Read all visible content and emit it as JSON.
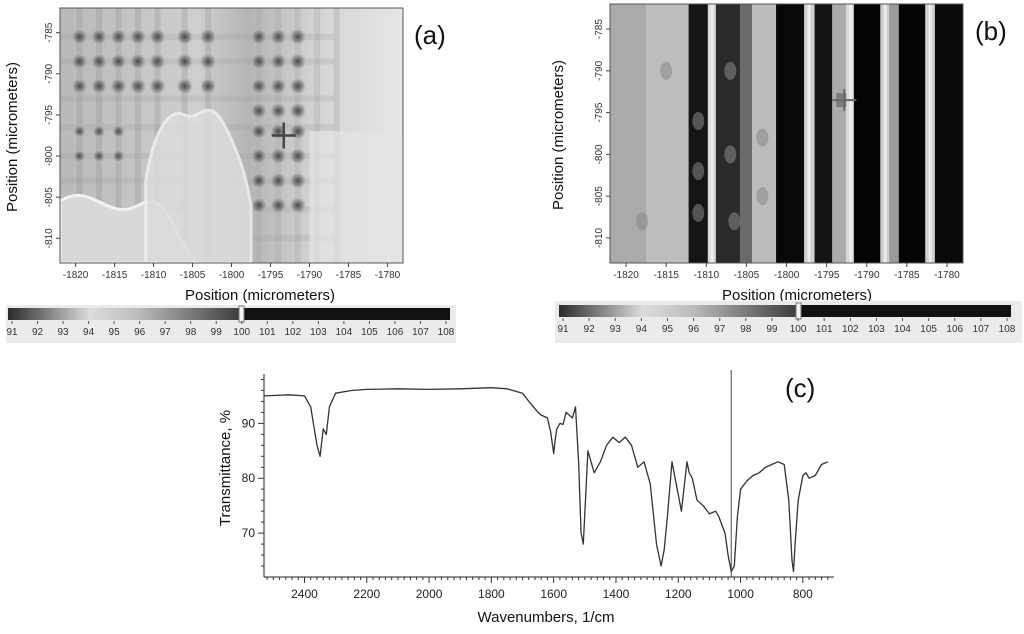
{
  "chart_data": [
    {
      "type": "heatmap",
      "panel_label": "(a)",
      "xlabel": "Position (micrometers)",
      "ylabel": "Position (micrometers)",
      "x_ticks": [
        "-1820",
        "-1815",
        "-1810",
        "-1805",
        "-1800",
        "-1795",
        "-1790",
        "-1785",
        "-1780"
      ],
      "y_ticks": [
        "-785",
        "-790",
        "-795",
        "-800",
        "-805",
        "-810"
      ],
      "xlim": [
        -1822,
        -1778
      ],
      "ylim": [
        -782,
        -813
      ],
      "colorbar": {
        "ticks": [
          "91",
          "92",
          "93",
          "94",
          "95",
          "96",
          "97",
          "98",
          "99",
          "100",
          "101",
          "102",
          "103",
          "104",
          "105",
          "106",
          "107",
          "108"
        ],
        "range": [
          91,
          108
        ],
        "gradient_end": 100
      },
      "crosshair": {
        "x": -1793.3,
        "y": -797.5
      }
    },
    {
      "type": "heatmap",
      "panel_label": "(b)",
      "xlabel": "Position (micrometers)",
      "ylabel": "Position (micrometers)",
      "x_ticks": [
        "-1820",
        "-1815",
        "-1810",
        "-1805",
        "-1800",
        "-1795",
        "-1790",
        "-1785",
        "-1780"
      ],
      "y_ticks": [
        "-785",
        "-790",
        "-795",
        "-800",
        "-805",
        "-810"
      ],
      "xlim": [
        -1822,
        -1778
      ],
      "ylim": [
        -782,
        -813
      ],
      "colorbar": {
        "ticks": [
          "91",
          "92",
          "93",
          "94",
          "95",
          "96",
          "97",
          "98",
          "99",
          "100",
          "101",
          "102",
          "103",
          "104",
          "105",
          "106",
          "107",
          "108"
        ],
        "range": [
          91,
          108
        ],
        "gradient_end": 100
      },
      "crosshair": {
        "x": -1792.8,
        "y": -793.5
      }
    },
    {
      "type": "line",
      "panel_label": "(c)",
      "xlabel": "Wavenumbers, 1/cm",
      "ylabel": "Transmittance, %",
      "x_ticks": [
        "2400",
        "2200",
        "2000",
        "1800",
        "1600",
        "1400",
        "1200",
        "1000",
        "800"
      ],
      "y_ticks": [
        "70",
        "80",
        "90"
      ],
      "xlim": [
        2530,
        700
      ],
      "ylim": [
        62,
        99
      ],
      "marker_line_x": 1030,
      "series": [
        {
          "x": [
            2530,
            2450,
            2400,
            2380,
            2360,
            2350,
            2340,
            2330,
            2320,
            2300,
            2250,
            2200,
            2100,
            2000,
            1900,
            1800,
            1750,
            1700,
            1680,
            1650,
            1640,
            1620,
            1610,
            1600,
            1595,
            1590,
            1580,
            1570,
            1560,
            1540,
            1530,
            1520,
            1512,
            1505,
            1490,
            1470,
            1450,
            1430,
            1410,
            1390,
            1370,
            1350,
            1330,
            1310,
            1290,
            1270,
            1255,
            1245,
            1235,
            1220,
            1210,
            1200,
            1190,
            1180,
            1172,
            1165,
            1155,
            1140,
            1120,
            1100,
            1080,
            1070,
            1050,
            1040,
            1030,
            1020,
            1010,
            1000,
            980,
            960,
            940,
            920,
            900,
            880,
            860,
            845,
            835,
            830,
            825,
            815,
            800,
            790,
            780,
            760,
            740,
            720
          ],
          "y": [
            95,
            95.2,
            95,
            93,
            86,
            84,
            89,
            88,
            93,
            95.5,
            96,
            96.2,
            96.3,
            96.2,
            96.3,
            96.5,
            96.3,
            95.5,
            94,
            92,
            91.5,
            91,
            88.5,
            84.5,
            87,
            89,
            90,
            89.8,
            92,
            91,
            93,
            83,
            70,
            68,
            85,
            81,
            83,
            86,
            87.5,
            86.5,
            87.5,
            86,
            82,
            83,
            79,
            68,
            64,
            67,
            73,
            83,
            80,
            77,
            74,
            79,
            83,
            81,
            80,
            76,
            75,
            73.5,
            74,
            73,
            70,
            66,
            63,
            64,
            73,
            78,
            79.5,
            80.5,
            81,
            82,
            82.5,
            83,
            82.5,
            76,
            65,
            63,
            68,
            76,
            80.5,
            81,
            80,
            80.5,
            82.5,
            83
          ]
        }
      ]
    }
  ]
}
